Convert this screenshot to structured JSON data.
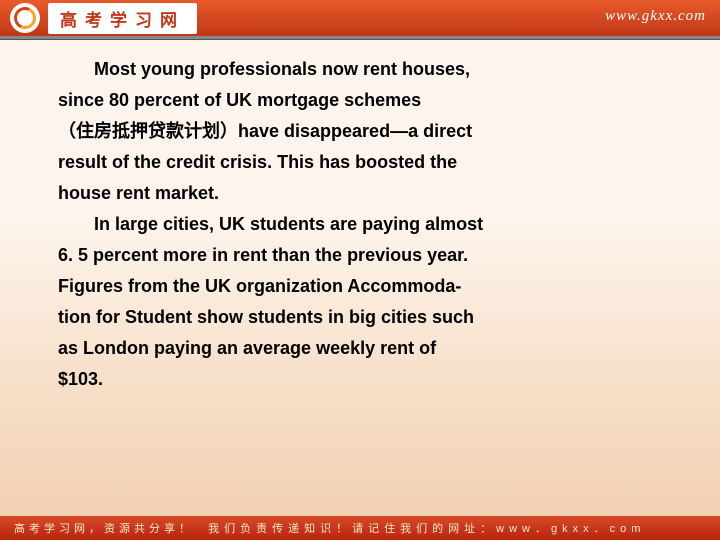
{
  "header": {
    "title": "高考学习网",
    "url": "www.gkxx.com"
  },
  "body": {
    "p1_a": "Most young professionals now rent houses,",
    "p1_b": "since 80 percent of UK mortgage schemes",
    "p1_c": "（住房抵押贷款计划）have disappeared—a direct",
    "p1_d": "result of the credit crisis. This has boosted the",
    "p1_e": "house rent market.",
    "p2_a": "In large cities, UK students are paying almost",
    "p2_b": "6. 5 percent more in rent than the previous year.",
    "p2_c": "Figures from the UK organization Accommoda-",
    "p2_d": "tion for Student show students in big cities such",
    "p2_e": "as London paying an average weekly rent of",
    "p2_f": "$103."
  },
  "footer": {
    "left": "高考学习网，资源共分享！",
    "right": "我们负责传递知识！请记住我们的网址：www．gkxx．com"
  },
  "colors": {
    "header_grad_top": "#e85a2a",
    "header_grad_bottom": "#c03818",
    "bg_top": "#fdf5ed",
    "bg_bottom": "#f0ceb0",
    "footer_grad_top": "#d84a28",
    "footer_grad_bottom": "#b8240c",
    "text": "#000000"
  }
}
